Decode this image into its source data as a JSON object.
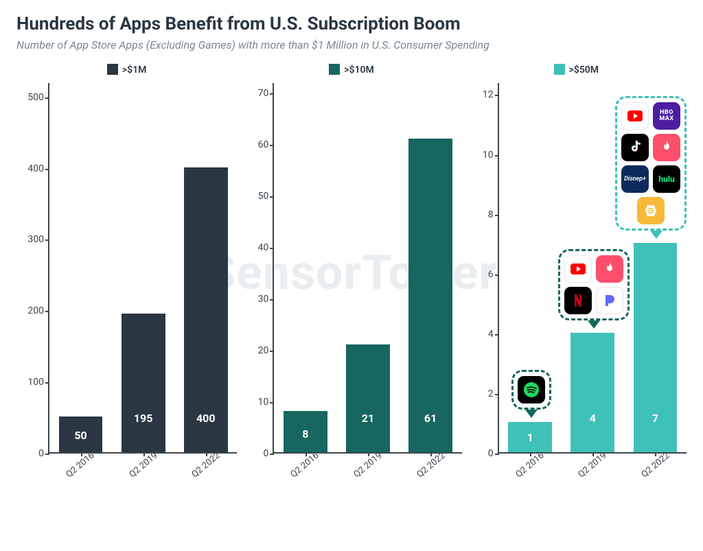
{
  "title": "Hundreds of Apps Benefit from U.S. Subscription Boom",
  "subtitle": "Number of App Store Apps (Excluding Games) with more than $1 Million in U.S. Consumer Spending",
  "watermark": "SensorTower",
  "text_color": "#3b454d",
  "title_color": "#2a3742",
  "subtitle_color": "#7a8791",
  "axis_color": "#3b454d",
  "background_color": "#ffffff",
  "title_fontsize": 26,
  "subtitle_fontsize": 16,
  "tick_fontsize": 14,
  "barlabel_fontsize": 16,
  "xlabel_fontsize": 13,
  "panels": [
    {
      "legend_label": ">$1M",
      "bar_color": "#2a3742",
      "categories": [
        "Q2 2016",
        "Q2 2019",
        "Q2 2022"
      ],
      "values": [
        50,
        195,
        400
      ],
      "yticks": [
        0,
        100,
        200,
        300,
        400,
        500
      ],
      "ylim": [
        0,
        520
      ],
      "bar_width": 0.7
    },
    {
      "legend_label": ">$10M",
      "bar_color": "#17665f",
      "categories": [
        "Q2 2016",
        "Q2 2019",
        "Q2 2022"
      ],
      "values": [
        8,
        21,
        61
      ],
      "yticks": [
        0,
        10,
        20,
        30,
        40,
        50,
        60,
        70
      ],
      "ylim": [
        0,
        72
      ],
      "bar_width": 0.7
    },
    {
      "legend_label": ">$50M",
      "bar_color": "#3fc1b7",
      "categories": [
        "Q2 2016",
        "Q2 2019",
        "Q2 2022"
      ],
      "values": [
        1,
        4,
        7
      ],
      "yticks": [
        0,
        2,
        4,
        6,
        8,
        10,
        12
      ],
      "ylim": [
        0,
        12.4
      ],
      "bar_width": 0.7
    }
  ],
  "callouts": [
    {
      "panel_index": 2,
      "bar_index": 0,
      "border_color": "#17665f",
      "cols": 1,
      "apps": [
        {
          "name": "spotify",
          "bg": "#000000"
        }
      ]
    },
    {
      "panel_index": 2,
      "bar_index": 1,
      "border_color": "#17665f",
      "cols": 2,
      "apps": [
        {
          "name": "youtube",
          "bg": "#ffffff"
        },
        {
          "name": "tinder",
          "bg": "#fd4f6b"
        },
        {
          "name": "netflix",
          "bg": "#000000"
        },
        {
          "name": "pandora",
          "bg": "#ffffff"
        }
      ]
    },
    {
      "panel_index": 2,
      "bar_index": 2,
      "border_color": "#3fc1b7",
      "cols": 2,
      "apps": [
        {
          "name": "youtube",
          "bg": "#ffffff"
        },
        {
          "name": "hbomax",
          "bg": "#4b1ea3"
        },
        {
          "name": "tiktok",
          "bg": "#000000"
        },
        {
          "name": "tinder",
          "bg": "#fd4f6b"
        },
        {
          "name": "disneyplus",
          "bg": "#0b2a5b"
        },
        {
          "name": "hulu",
          "bg": "#000000"
        },
        {
          "name": "bumble",
          "bg": "#f7b939"
        }
      ]
    }
  ]
}
